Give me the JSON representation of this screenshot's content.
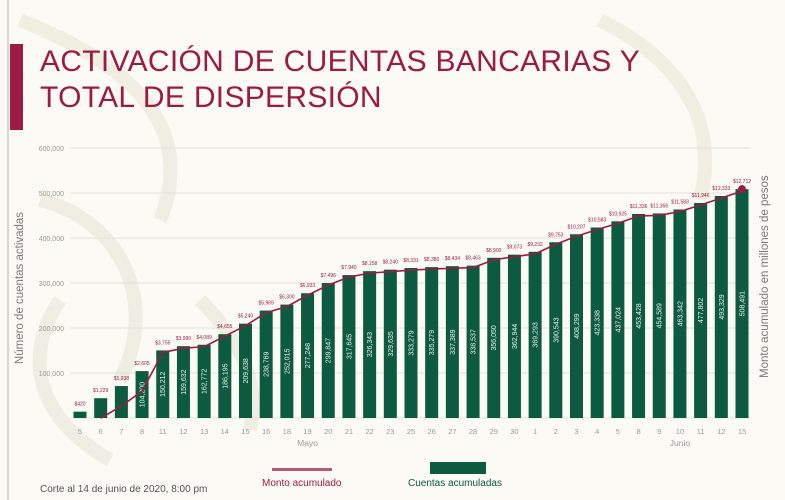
{
  "slide": {
    "title_line1": "ACTIVACIÓN DE CUENTAS BANCARIAS Y",
    "title_line2": "TOTAL DE DISPERSIÓN",
    "footer": "Corte al 14 de junio de 2020, 8:00 pm",
    "colors": {
      "accent": "#9b1b45",
      "bar": "#0c5a40",
      "line": "#9b1b45",
      "background": "#fbfaf5"
    }
  },
  "chart_data": {
    "type": "bar",
    "title": "ACTIVACIÓN DE CUENTAS BANCARIAS Y TOTAL DE DISPERSIÓN",
    "xlabel": "",
    "ylabel": "Número de cuentas activadas",
    "ylabel_right": "Monto acumulado en millones de pesos",
    "ylim": [
      0,
      600000
    ],
    "yticks": [
      "100,000",
      "200,000",
      "300,000",
      "400,000",
      "500,000",
      "600,000"
    ],
    "grid": true,
    "legend": [
      "Monto acumulado",
      "Cuentas acumuladas"
    ],
    "legend_position": "bottom",
    "month_labels": [
      {
        "label": "Mayo",
        "at_index": 11
      },
      {
        "label": "Junio",
        "at_index": 29
      }
    ],
    "categories": [
      "5",
      "6",
      "7",
      "8",
      "11",
      "12",
      "13",
      "14",
      "15",
      "16",
      "18",
      "19",
      "20",
      "21",
      "22",
      "23",
      "25",
      "26",
      "27",
      "28",
      "29",
      "30",
      "1",
      "2",
      "3",
      "4",
      "5",
      "8",
      "9",
      "10",
      "11",
      "12",
      "15"
    ],
    "series": [
      {
        "name": "Cuentas acumuladas",
        "type": "bar",
        "values": [
          14000,
          44000,
          71000,
          104200,
          150212,
          159632,
          162772,
          186195,
          209638,
          238769,
          252015,
          277248,
          299847,
          317645,
          326343,
          329635,
          333279,
          335279,
          337389,
          338537,
          356050,
          362944,
          369293,
          390543,
          408299,
          423338,
          437024,
          453428,
          454589,
          463342,
          477802,
          493329,
          508491
        ],
        "labels": [
          "",
          "",
          "",
          "104,200",
          "150,212",
          "159,632",
          "162,772",
          "186,195",
          "209,638",
          "238,769",
          "252,015",
          "277,248",
          "299,847",
          "317,645",
          "326,343",
          "329,635",
          "333,279",
          "335,279",
          "337,389",
          "338,537",
          "356,050",
          "362,944",
          "369,293",
          "390,543",
          "408,299",
          "423,338",
          "437,024",
          "453,428",
          "454,589",
          "463,342",
          "477,802",
          "493,329",
          "508,491"
        ]
      },
      {
        "name": "Monto acumulado",
        "type": "line",
        "labels": [
          "$420",
          "$1,229",
          "$1,938",
          "$2,605",
          "$3,755",
          "$3,990",
          "$4,089",
          "$4,655",
          "$5,240",
          "$5,969",
          "$6,300",
          "$6,933",
          "$7,496",
          "$7,940",
          "$8,158",
          "$8,240",
          "$8,331",
          "$8,380",
          "$8,434",
          "$8,463",
          "$8,900",
          "$9,073",
          "$9,232",
          "$9,753",
          "$10,207",
          "$10,583",
          "$10,925",
          "$11,336",
          "$11,366",
          "$11,583",
          "$11,946",
          "$12,333",
          "$12,712"
        ]
      }
    ]
  }
}
